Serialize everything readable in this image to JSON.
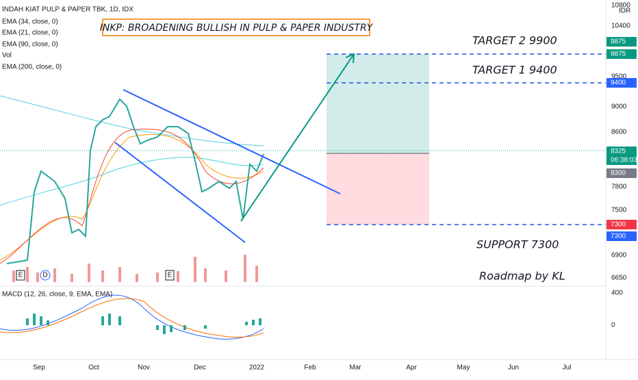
{
  "header": {
    "symbol": "INDAH KIAT PULP & PAPER TBK, 1D, IDX",
    "currency": "IDR"
  },
  "indicators": [
    "EMA (34, close, 0)",
    "EMA (21, close, 0)",
    "EMA (90, close, 0)",
    "Vol",
    "EMA (200, close, 0)"
  ],
  "title": "INKP: BROADENING BULLISH IN PULP & PAPER INDUSTRY",
  "annotations": {
    "target2": "TARGET 2  9900",
    "target1": "TARGET 1  9400",
    "support": "SUPPORT 7300",
    "credit": "Roadmap by KL"
  },
  "price_axis": {
    "ticks": [
      "10800",
      "10400",
      "9500",
      "9000",
      "8600",
      "7800",
      "7500",
      "6900",
      "6650"
    ],
    "badges": [
      "9875",
      "9875",
      "9400",
      "8325",
      "06:38:03",
      "8300",
      "7300",
      "7300"
    ]
  },
  "macd": {
    "label": "MACD (12, 26, close, 9, EMA, EMA)",
    "ticks": [
      "400",
      "0"
    ]
  },
  "time_axis": [
    "Sep",
    "Oct",
    "Nov",
    "Dec",
    "2022",
    "Feb",
    "Mar",
    "Apr",
    "May",
    "Jun",
    "Jul"
  ],
  "markers": [
    "E",
    "D",
    "E"
  ]
}
